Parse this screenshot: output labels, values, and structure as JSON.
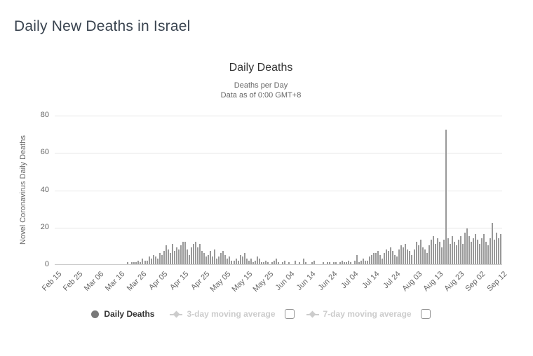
{
  "page": {
    "title": "Daily New Deaths in Israel"
  },
  "chart": {
    "title": "Daily Deaths",
    "subtitle_line1": "Deaths per Day",
    "subtitle_line2": "Data as of 0:00 GMT+8",
    "y_axis_title": "Novel Coronavirus Daily Deaths"
  },
  "legend": {
    "items": [
      {
        "label": "Daily Deaths",
        "marker": "circle-icon",
        "enabled": true,
        "has_checkbox": false
      },
      {
        "label": "3-day moving average",
        "marker": "line-diamond-icon",
        "enabled": false,
        "has_checkbox": true,
        "checked": false
      },
      {
        "label": "7-day moving average",
        "marker": "line-diamond-icon",
        "enabled": false,
        "has_checkbox": true,
        "checked": false
      }
    ]
  },
  "colors": {
    "bar": "#999999",
    "gridline": "#e6e6e6",
    "axis_line": "#cccccc",
    "axis_text": "#666666",
    "title_text": "#333333",
    "page_title_text": "#3a4450",
    "legend_enabled": "#333333",
    "legend_disabled": "#cccccc",
    "legend_marker": "#787878"
  },
  "chart_data": {
    "type": "bar",
    "title": "Daily Deaths",
    "subtitle": "Deaths per Day — Data as of 0:00 GMT+8",
    "xlabel": "",
    "ylabel": "Novel Coronavirus Daily Deaths",
    "ylim": [
      0,
      80
    ],
    "y_ticks": [
      0,
      20,
      40,
      60,
      80
    ],
    "grid": true,
    "legend_position": "bottom",
    "series_name": "Daily Deaths",
    "x_start": "Feb 15",
    "x_end": "Sep 12",
    "x_tick_interval_days": 10,
    "x_tick_labels": [
      "Feb 15",
      "Feb 25",
      "Mar 06",
      "Mar 16",
      "Mar 26",
      "Apr 05",
      "Apr 15",
      "Apr 25",
      "May 05",
      "May 15",
      "May 25",
      "Jun 04",
      "Jun 14",
      "Jun 24",
      "Jul 04",
      "Jul 14",
      "Jul 24",
      "Aug 03",
      "Aug 13",
      "Aug 23",
      "Sep 02",
      "Sep 12"
    ],
    "values": [
      0,
      0,
      0,
      0,
      0,
      0,
      0,
      0,
      0,
      0,
      0,
      0,
      0,
      0,
      0,
      0,
      0,
      0,
      0,
      0,
      0,
      0,
      0,
      0,
      0,
      0,
      0,
      0,
      0,
      0,
      0,
      0,
      0,
      0,
      1,
      0,
      1,
      1,
      1,
      2,
      1,
      3,
      2,
      2,
      4,
      3,
      5,
      4,
      3,
      6,
      5,
      7,
      10,
      8,
      6,
      11,
      7,
      9,
      8,
      10,
      12,
      12,
      8,
      5,
      9,
      11,
      12,
      9,
      11,
      7,
      6,
      4,
      5,
      7,
      4,
      8,
      3,
      4,
      6,
      7,
      5,
      3,
      4,
      2,
      2,
      3,
      2,
      5,
      4,
      6,
      3,
      2,
      3,
      1,
      2,
      4,
      3,
      1,
      1,
      2,
      1,
      0,
      1,
      2,
      3,
      1,
      0,
      1,
      2,
      0,
      1,
      0,
      0,
      2,
      0,
      1,
      0,
      3,
      1,
      0,
      0,
      1,
      2,
      0,
      0,
      0,
      1,
      0,
      1,
      1,
      0,
      1,
      1,
      0,
      1,
      2,
      1,
      1,
      2,
      1,
      0,
      2,
      5,
      1,
      2,
      3,
      2,
      2,
      4,
      5,
      6,
      6,
      7,
      5,
      3,
      6,
      8,
      7,
      9,
      7,
      5,
      4,
      8,
      10,
      9,
      11,
      8,
      7,
      5,
      8,
      12,
      10,
      13,
      9,
      8,
      6,
      10,
      13,
      15,
      11,
      14,
      12,
      9,
      13,
      72,
      14,
      11,
      15,
      12,
      10,
      13,
      15,
      11,
      17,
      19,
      15,
      12,
      14,
      16,
      13,
      11,
      14,
      16,
      12,
      10,
      14,
      22,
      13,
      17,
      14,
      16
    ]
  }
}
